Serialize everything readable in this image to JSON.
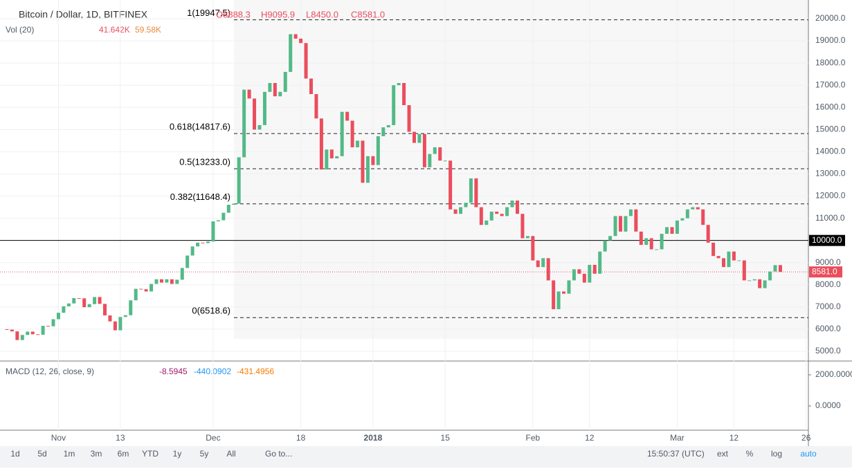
{
  "chart_data": {
    "type": "candlestick",
    "title": "Bitcoin / Dollar, 1D, BITFINEX",
    "header_values": [
      "O8888.3",
      "H9095.9",
      "L8450.0",
      "C8581.0"
    ],
    "volume_legend": {
      "name": "Vol (20)",
      "values": [
        "41.642K",
        "59.58K"
      ]
    },
    "macd_legend": {
      "name": "MACD (12, 26, close, 9)",
      "values": [
        "-8.5945",
        "-440.0902",
        "-431.4956"
      ]
    },
    "up_color": "#53b987",
    "down_color": "#eb4d5c",
    "closes": [
      6000,
      5980,
      5900,
      5510,
      5740,
      5890,
      5770,
      5750,
      6150,
      6130,
      6450,
      6740,
      7030,
      7160,
      7400,
      7390,
      6990,
      7130,
      7450,
      7140,
      6620,
      6350,
      5950,
      6550,
      6630,
      7300,
      7820,
      7800,
      7700,
      8040,
      8250,
      8100,
      8250,
      8040,
      8230,
      8760,
      9320,
      9730,
      9900,
      9880,
      9950,
      10860,
      10910,
      11250,
      11610,
      11660,
      13750,
      16800,
      16400,
      15000,
      15200,
      16700,
      17100,
      16500,
      16700,
      17600,
      19300,
      19100,
      18900,
      17300,
      16600,
      15500,
      13200,
      14100,
      13700,
      13800,
      15800,
      15400,
      14200,
      14500,
      12600,
      13800,
      13400,
      14700,
      15100,
      15200,
      17000,
      17100,
      16100,
      14900,
      14400,
      14800,
      13300,
      13900,
      14200,
      13600,
      13600,
      11400,
      11200,
      11500,
      11700,
      12800,
      11500,
      10700,
      10900,
      11300,
      11200,
      11100,
      11500,
      11800,
      11200,
      10100,
      10200,
      9100,
      8800,
      9200,
      8200,
      6900,
      7700,
      7600,
      8200,
      8700,
      8500,
      8100,
      8900,
      8500,
      9500,
      10000,
      10200,
      11100,
      10400,
      11100,
      11400,
      10400,
      9800,
      10100,
      9600,
      9600,
      10300,
      10600,
      10300,
      10900,
      11000,
      11400,
      11500,
      11400,
      10700,
      9900,
      9300,
      9200,
      8800,
      9500,
      9100,
      9100,
      8200,
      8200,
      8250,
      7850,
      8200,
      8600,
      8888.3,
      8581.0
    ],
    "fib_levels": [
      {
        "value": 19947.5,
        "label": "1(19947.5)"
      },
      {
        "value": 14817.6,
        "label": "0.618(14817.6)"
      },
      {
        "value": 13233.0,
        "label": "0.5(13233.0)"
      },
      {
        "value": 11648.4,
        "label": "0.382(11648.4)"
      },
      {
        "value": 6518.6,
        "label": "0(6518.6)"
      }
    ],
    "horizontal_line": {
      "value": 10000,
      "label": "10000.0"
    },
    "last_price": {
      "value": 8581.0,
      "label": "8581.0"
    },
    "ylim": [
      5000,
      20000
    ],
    "yticks": [
      {
        "value": 5000,
        "label": "5000.0"
      },
      {
        "value": 6000,
        "label": "6000.0"
      },
      {
        "value": 7000,
        "label": "7000.0"
      },
      {
        "value": 8000,
        "label": "8000.0"
      },
      {
        "value": 9000,
        "label": "9000.0"
      },
      {
        "value": 10000,
        "label": "10000.0"
      },
      {
        "value": 11000,
        "label": "11000.0"
      },
      {
        "value": 12000,
        "label": "12000.0"
      },
      {
        "value": 13000,
        "label": "13000.0"
      },
      {
        "value": 14000,
        "label": "14000.0"
      },
      {
        "value": 15000,
        "label": "15000.0"
      },
      {
        "value": 16000,
        "label": "16000.0"
      },
      {
        "value": 17000,
        "label": "17000.0"
      },
      {
        "value": 18000,
        "label": "18000.0"
      },
      {
        "value": 19000,
        "label": "19000.0"
      },
      {
        "value": 20000,
        "label": "20000.0"
      }
    ],
    "macd_ticks": [
      {
        "value": 2000,
        "label": "2000.0000"
      },
      {
        "value": 0,
        "label": "0.0000"
      }
    ],
    "xticks": [
      {
        "value": 11,
        "label": "Nov"
      },
      {
        "value": 23,
        "label": "13"
      },
      {
        "value": 41,
        "label": "Dec"
      },
      {
        "value": 58,
        "label": "18"
      },
      {
        "value": 72,
        "label": "2018"
      },
      {
        "value": 86,
        "label": "15"
      },
      {
        "value": 103,
        "label": "Feb"
      },
      {
        "value": 114,
        "label": "12"
      },
      {
        "value": 131,
        "label": "Mar"
      },
      {
        "value": 142,
        "label": "12"
      },
      {
        "value": 156,
        "label": "26"
      }
    ]
  },
  "toolbar": {
    "ranges": [
      "1d",
      "5d",
      "1m",
      "3m",
      "6m",
      "YTD",
      "1y",
      "5y",
      "All"
    ],
    "goto": "Go to...",
    "clock": "15:50:37 (UTC)",
    "options": [
      "ext",
      "%",
      "log",
      "auto"
    ]
  }
}
